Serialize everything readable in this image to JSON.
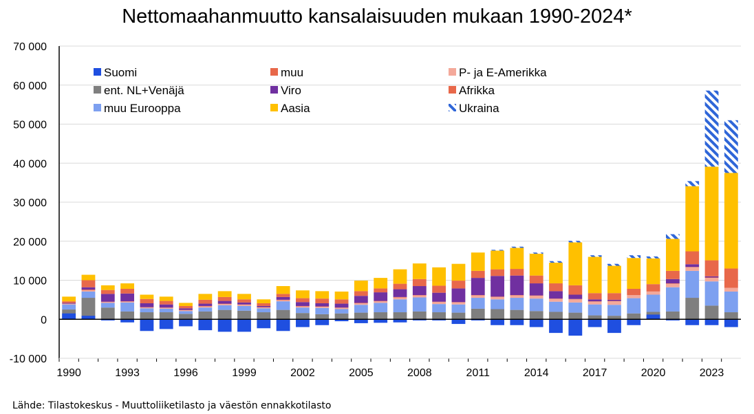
{
  "chart_data": {
    "type": "bar",
    "stacked": true,
    "title": "Nettomaahanmuutto kansalaisuuden mukaan 1990-2024*",
    "source": "Lähde: Tilastokeskus - Muuttoliiketilasto ja väestön ennakkotilasto",
    "xlabel": "",
    "ylabel": "",
    "ylim": [
      -10000,
      70000
    ],
    "y_ticks": [
      -10000,
      0,
      10000,
      20000,
      30000,
      40000,
      50000,
      60000,
      70000
    ],
    "y_tick_labels": [
      "-10 000",
      "0",
      "10 000",
      "20 000",
      "30 000",
      "40 000",
      "50 000",
      "60 000",
      "70 000"
    ],
    "x_tick_labels": [
      "1990",
      "1993",
      "1996",
      "1999",
      "2002",
      "2005",
      "2008",
      "2011",
      "2014",
      "2017",
      "2020",
      "2023"
    ],
    "grid": true,
    "legend_position": "top-left inside",
    "categories": [
      "1990",
      "1991",
      "1992",
      "1993",
      "1994",
      "1995",
      "1996",
      "1997",
      "1998",
      "1999",
      "2000",
      "2001",
      "2002",
      "2003",
      "2004",
      "2005",
      "2006",
      "2007",
      "2008",
      "2009",
      "2010",
      "2011",
      "2012",
      "2013",
      "2014",
      "2015",
      "2016",
      "2017",
      "2018",
      "2019",
      "2020",
      "2021",
      "2022",
      "2023",
      "2024"
    ],
    "series": [
      {
        "name": "Suomi",
        "color": "#1f4fe0",
        "pattern": false,
        "values": [
          1500,
          900,
          -300,
          -800,
          -3000,
          -2500,
          -1800,
          -2800,
          -3200,
          -3200,
          -2300,
          -3000,
          -2000,
          -1500,
          -500,
          -1000,
          -900,
          -800,
          -300,
          -300,
          -1200,
          -300,
          -1500,
          -1500,
          -2000,
          -3500,
          -4200,
          -2000,
          -3500,
          -1500,
          1200,
          -300,
          -1500,
          -1500,
          -2000
        ]
      },
      {
        "name": "ent. NL+Venäjä",
        "color": "#7f7f7f",
        "pattern": false,
        "values": [
          2500,
          5500,
          3000,
          2000,
          1800,
          1800,
          1400,
          2000,
          2400,
          2200,
          1800,
          2400,
          1600,
          1300,
          1500,
          1700,
          1800,
          1800,
          2000,
          1800,
          1700,
          2700,
          2600,
          2400,
          2100,
          1900,
          1700,
          1000,
          900,
          1500,
          1900,
          2000,
          5500,
          3500,
          1800
        ]
      },
      {
        "name": "muu Eurooppa",
        "color": "#7da0f0",
        "pattern": false,
        "values": [
          1300,
          1600,
          1200,
          2300,
          1000,
          900,
          700,
          1000,
          1200,
          1200,
          1000,
          2200,
          1400,
          1600,
          1100,
          2000,
          2400,
          3300,
          3600,
          2100,
          2100,
          2800,
          2500,
          3100,
          3200,
          2600,
          2600,
          2800,
          2800,
          3900,
          4400,
          6200,
          6900,
          6200,
          5300
        ]
      },
      {
        "name": "muu",
        "color": "#e8684a",
        "pattern": false,
        "values": [
          0,
          200,
          100,
          100,
          100,
          100,
          100,
          100,
          100,
          100,
          100,
          100,
          100,
          100,
          100,
          100,
          100,
          100,
          100,
          100,
          100,
          100,
          100,
          100,
          100,
          100,
          100,
          100,
          100,
          100,
          100,
          100,
          100,
          100,
          100
        ]
      },
      {
        "name": "Viro",
        "color": "#7030a0",
        "pattern": false,
        "values": [
          200,
          600,
          2000,
          2000,
          1000,
          800,
          400,
          600,
          700,
          500,
          300,
          700,
          1000,
          800,
          1000,
          1800,
          2200,
          2000,
          2300,
          2300,
          3500,
          4400,
          5300,
          5000,
          3100,
          1900,
          1100,
          500,
          300,
          0,
          0,
          1100,
          700,
          300,
          0
        ]
      },
      {
        "name": "Aasia",
        "color": "#ffc000",
        "pattern": false,
        "values": [
          1200,
          1400,
          1200,
          1400,
          1100,
          1100,
          800,
          1500,
          1500,
          1400,
          1000,
          2000,
          2000,
          1900,
          2000,
          2700,
          2700,
          3700,
          4000,
          4700,
          4300,
          4700,
          4800,
          5400,
          5600,
          5300,
          11000,
          9300,
          7000,
          7900,
          6600,
          8200,
          16700,
          24000,
          24500
        ]
      },
      {
        "name": "Afrikka",
        "color": "#e8684a",
        "pattern": false,
        "values": [
          400,
          1800,
          1000,
          1200,
          1100,
          900,
          600,
          1000,
          1000,
          800,
          700,
          800,
          1000,
          1200,
          1100,
          1200,
          1000,
          1400,
          1800,
          1800,
          2000,
          1800,
          1700,
          1700,
          2000,
          2000,
          2400,
          1600,
          1700,
          1500,
          1800,
          2100,
          3300,
          4100,
          4900
        ]
      },
      {
        "name": "P- ja E-Amerikka",
        "color": "#f4a99a",
        "pattern": false,
        "values": [
          200,
          300,
          200,
          200,
          200,
          200,
          200,
          300,
          300,
          300,
          200,
          300,
          300,
          300,
          300,
          400,
          400,
          500,
          500,
          500,
          500,
          600,
          600,
          600,
          700,
          700,
          800,
          700,
          900,
          800,
          800,
          900,
          900,
          900,
          900
        ]
      },
      {
        "name": "Ukraina",
        "color": "#2f66d8",
        "pattern": true,
        "values": [
          0,
          0,
          0,
          0,
          0,
          0,
          0,
          0,
          0,
          0,
          0,
          0,
          0,
          0,
          0,
          0,
          0,
          0,
          0,
          0,
          0,
          0,
          200,
          300,
          300,
          400,
          400,
          400,
          500,
          700,
          500,
          1200,
          1300,
          19500,
          13500
        ]
      }
    ],
    "stack_order": [
      "ent. NL+Venäjä",
      "muu Eurooppa",
      "P- ja E-Amerikka",
      "muu",
      "Viro",
      "Afrikka",
      "Aasia",
      "Ukraina"
    ],
    "legend_order": [
      "Suomi",
      "muu",
      "P- ja E-Amerikka",
      "ent. NL+Venäjä",
      "Viro",
      "Afrikka",
      "muu Eurooppa",
      "Aasia",
      "Ukraina"
    ]
  }
}
